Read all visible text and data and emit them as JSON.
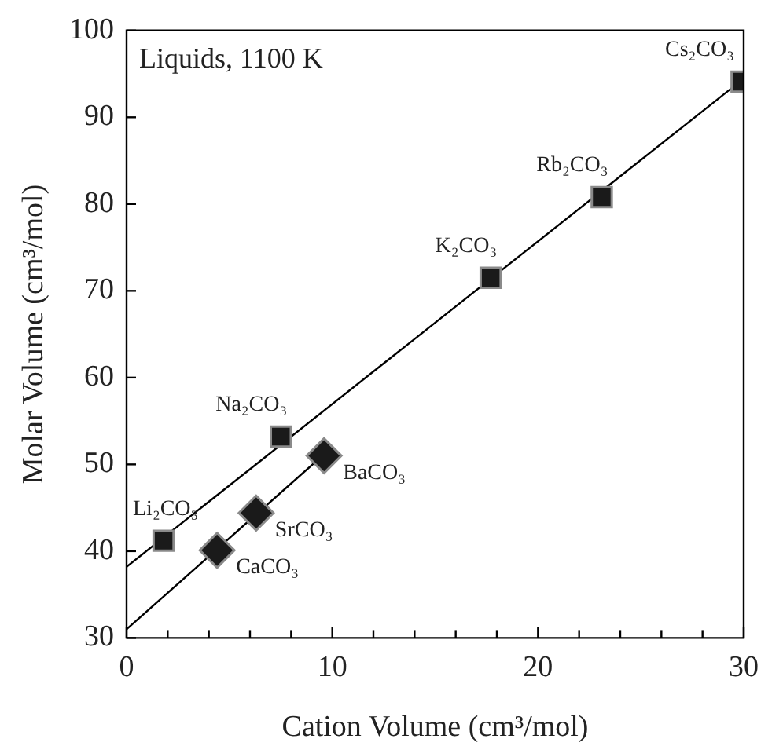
{
  "chart_data": {
    "type": "scatter",
    "xlabel": "Cation Volume (cm³/mol)",
    "ylabel": "Molar Volume (cm³/mol)",
    "xlim": [
      0,
      30
    ],
    "ylim": [
      30,
      100
    ],
    "xticks": [
      0,
      {
        "value": 2,
        "label": null
      },
      {
        "value": 4,
        "label": null
      },
      {
        "value": 6,
        "label": null
      },
      {
        "value": 8,
        "label": null
      },
      10,
      {
        "value": 12,
        "label": null
      },
      {
        "value": 14,
        "label": null
      },
      {
        "value": 16,
        "label": null
      },
      {
        "value": 18,
        "label": null
      },
      20,
      {
        "value": 22,
        "label": null
      },
      {
        "value": 24,
        "label": null
      },
      {
        "value": 26,
        "label": null
      },
      {
        "value": 28,
        "label": null
      },
      30
    ],
    "yticks": [
      30,
      40,
      50,
      60,
      70,
      80,
      90,
      100
    ],
    "grid": false,
    "legend": false,
    "series": [
      {
        "marker": "square",
        "color": "#1a1a1a",
        "x": [
          1.8,
          7.5,
          17.7,
          23.1,
          29.9
        ],
        "values": [
          41.2,
          53.2,
          71.5,
          80.8,
          94.1
        ]
      },
      {
        "marker": "diamond",
        "color": "#1a1a1a",
        "x": [
          4.4,
          6.3,
          9.6
        ],
        "values": [
          40.1,
          44.4,
          51
        ]
      },
      {
        "type": "line",
        "marker": "none",
        "color": "#000000",
        "x": [
          0,
          29.6
        ],
        "values": [
          38.2,
          93.7
        ]
      },
      {
        "type": "line",
        "marker": "none",
        "color": "#000000",
        "x": [
          0,
          9.9
        ],
        "values": [
          31,
          51.8
        ]
      }
    ],
    "annotations": [
      "Liquids, 1100 K",
      {
        "text": "Li₂CO₃",
        "x": 1.8,
        "y": 41.2
      },
      {
        "text": "Na₂CO₃",
        "x": 7.5,
        "y": 53.2
      },
      {
        "text": "K₂CO₃",
        "x": 17.7,
        "y": 71.5
      },
      {
        "text": "Rb₂CO₃",
        "x": 23.1,
        "y": 80.8
      },
      {
        "text": "Cs₂CO₃",
        "x": 29.9,
        "y": 94.1
      },
      {
        "text": "CaCO₃",
        "x": 4.4,
        "y": 40.1
      },
      {
        "text": "SrCO₃",
        "x": 6.3,
        "y": 44.4
      },
      {
        "text": "BaCO₃",
        "x": 9.6,
        "y": 51
      }
    ]
  }
}
